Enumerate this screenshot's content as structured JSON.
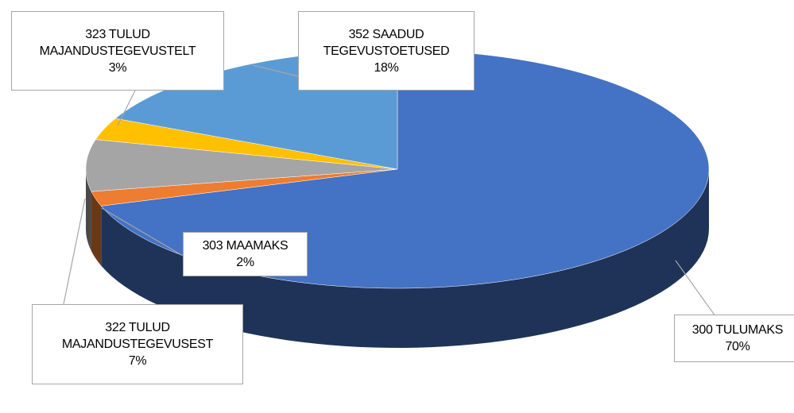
{
  "chart_data": {
    "type": "pie3d",
    "categories": [
      "300 TULUMAKS",
      "303 MAAMAKS",
      "322 TULUD MAJANDUSTEGEVUSEST",
      "323 TULUD MAJANDUSTEGEVUSTELT",
      "352 SAADUD TEGEVUSTOETUSED"
    ],
    "values": [
      70,
      2,
      7,
      3,
      18
    ],
    "value_labels": [
      "70%",
      "2%",
      "7%",
      "3%",
      "18%"
    ],
    "colors": [
      "#4472c4",
      "#ed7d31",
      "#a5a5a5",
      "#ffc000",
      "#5b9bd5"
    ]
  }
}
